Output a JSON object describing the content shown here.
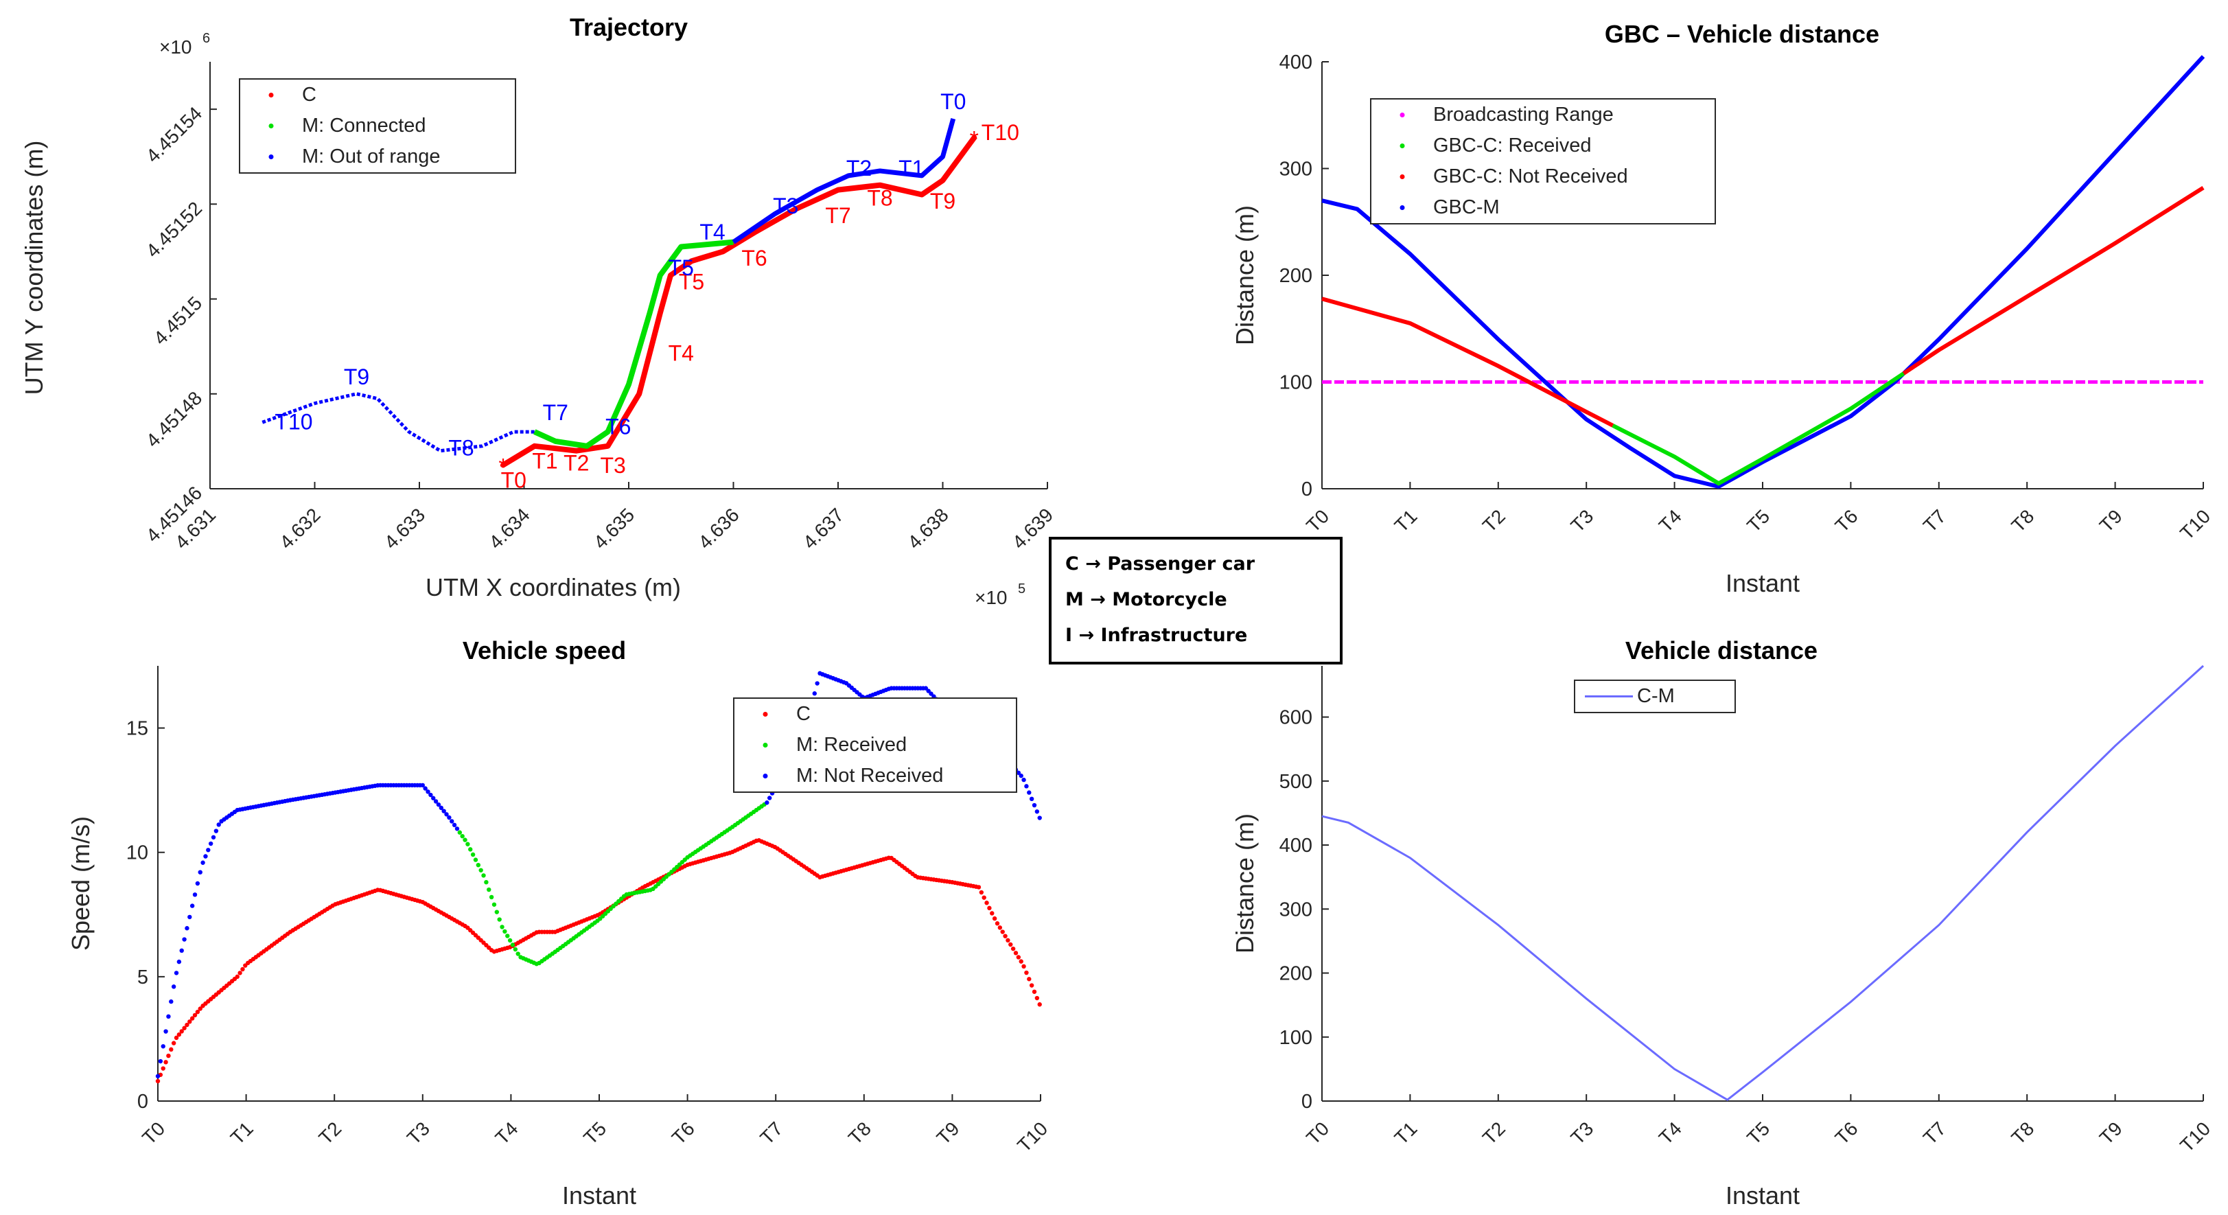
{
  "abbreviations": [
    "C → Passenger car",
    "M → Motorcycle",
    "I → Infrastructure"
  ],
  "chart_data": [
    {
      "id": "trajectory",
      "type": "scatter",
      "title": "Trajectory",
      "xlabel": "UTM X coordinates (m)",
      "ylabel": "UTM Y coordinates (m)",
      "x_exponent_label": "×10",
      "x_exponent": "5",
      "y_exponent_label": "×10",
      "y_exponent": "6",
      "xlim": [
        4.631,
        4.639
      ],
      "ylim": [
        4.45146,
        4.45155
      ],
      "xticks": [
        "4.631",
        "4.632",
        "4.633",
        "4.634",
        "4.635",
        "4.636",
        "4.637",
        "4.638",
        "4.639"
      ],
      "yticks": [
        "4.45146",
        "4.45148",
        "4.4515",
        "4.45152",
        "4.45154"
      ],
      "legend_position": "top-left",
      "colors": {
        "C": "#ff0000",
        "M: Connected": "#00e000",
        "M: Out of range": "#0000ff"
      },
      "legend": [
        "C",
        "M: Connected",
        "M: Out of range"
      ],
      "car_path": {
        "x": [
          4.6338,
          4.6341,
          4.6345,
          4.6348,
          4.6351,
          4.6353,
          4.6354,
          4.6356,
          4.6359,
          4.6362,
          4.6366,
          4.637,
          4.6374,
          4.6378,
          4.638,
          4.6383
        ],
        "y": [
          4.451465,
          4.451469,
          4.451468,
          4.451469,
          4.45148,
          4.451497,
          4.451505,
          4.451508,
          4.45151,
          4.451514,
          4.451519,
          4.451523,
          4.451524,
          4.451522,
          4.451525,
          4.451534
        ]
      },
      "moto_path": {
        "x": [
          4.6315,
          4.632,
          4.6324,
          4.6326,
          4.6329,
          4.6332,
          4.6336,
          4.6339,
          4.6341,
          4.6343,
          4.6346,
          4.6348,
          4.635,
          4.6352,
          4.6353,
          4.6355,
          4.636,
          4.6364,
          4.6368,
          4.6371,
          4.6374,
          4.6378,
          4.638,
          4.6381
        ],
        "y": [
          4.451474,
          4.451478,
          4.45148,
          4.451479,
          4.451472,
          4.451468,
          4.451469,
          4.451472,
          4.451472,
          4.45147,
          4.451469,
          4.451472,
          4.451482,
          4.451497,
          4.451505,
          4.451511,
          4.451512,
          4.451518,
          4.451523,
          4.451526,
          4.451527,
          4.451526,
          4.45153,
          4.451538
        ]
      },
      "connected_x_range": [
        4.6341,
        4.636
      ],
      "car_labels": [
        {
          "text": "T0",
          "x": 4.6339,
          "y": 4.4514602
        },
        {
          "text": "T1",
          "x": 4.6342,
          "y": 4.4514643
        },
        {
          "text": "T2",
          "x": 4.6345,
          "y": 4.4514638
        },
        {
          "text": "T3",
          "x": 4.63485,
          "y": 4.4514633
        },
        {
          "text": "T4",
          "x": 4.6355,
          "y": 4.451487
        },
        {
          "text": "T5",
          "x": 4.6356,
          "y": 4.451502
        },
        {
          "text": "T6",
          "x": 4.6362,
          "y": 4.451507
        },
        {
          "text": "T7",
          "x": 4.637,
          "y": 4.451516
        },
        {
          "text": "T8",
          "x": 4.6374,
          "y": 4.4515197
        },
        {
          "text": "T9",
          "x": 4.638,
          "y": 4.451519
        },
        {
          "text": "T10",
          "x": 4.63855,
          "y": 4.4515335
        }
      ],
      "moto_labels": [
        {
          "text": "T10",
          "x": 4.6318,
          "y": 4.4514725
        },
        {
          "text": "T9",
          "x": 4.6324,
          "y": 4.451482
        },
        {
          "text": "T8",
          "x": 4.6334,
          "y": 4.451467
        },
        {
          "text": "T7",
          "x": 4.6343,
          "y": 4.4514745
        },
        {
          "text": "T6",
          "x": 4.6349,
          "y": 4.4514715
        },
        {
          "text": "T5",
          "x": 4.6355,
          "y": 4.451505
        },
        {
          "text": "T4",
          "x": 4.6358,
          "y": 4.4515125
        },
        {
          "text": "T3",
          "x": 4.6365,
          "y": 4.451518
        },
        {
          "text": "T2",
          "x": 4.6372,
          "y": 4.451526
        },
        {
          "text": "T1",
          "x": 4.6377,
          "y": 4.451526
        },
        {
          "text": "T0",
          "x": 4.6381,
          "y": 4.45154
        }
      ]
    },
    {
      "id": "gbc-distance",
      "type": "line",
      "title": "GBC – Vehicle distance",
      "xlabel": "Instant",
      "ylabel": "Distance (m)",
      "categories": [
        "T0",
        "T1",
        "T2",
        "T3",
        "T4",
        "T5",
        "T6",
        "T7",
        "T8",
        "T9",
        "T10"
      ],
      "xlim": [
        0,
        10
      ],
      "ylim": [
        0,
        400
      ],
      "yticks": [
        0,
        100,
        200,
        300,
        400
      ],
      "legend_position": "top-left",
      "legend": [
        "Broadcasting Range",
        "GBC-C: Received",
        "GBC-C: Not Received",
        "GBC-M"
      ],
      "colors": {
        "Broadcasting Range": "#ff00ff",
        "GBC-C: Received": "#00e000",
        "GBC-C: Not Received": "#ff0000",
        "GBC-M": "#0000ff"
      },
      "series": [
        {
          "name": "Broadcasting Range",
          "x": [
            0,
            10
          ],
          "values": [
            100,
            100
          ]
        },
        {
          "name": "GBC-C",
          "x": [
            0,
            1,
            2,
            3,
            3.4,
            4,
            4.5,
            5,
            6,
            6.6,
            7,
            8,
            9,
            10
          ],
          "values": [
            178,
            155,
            115,
            72,
            55,
            30,
            5,
            28,
            75,
            108,
            130,
            180,
            230,
            282
          ]
        },
        {
          "name": "GBC-M",
          "x": [
            0,
            0.4,
            1,
            2,
            3,
            3.5,
            4,
            4.5,
            5,
            6,
            6.5,
            7,
            8,
            9,
            10
          ],
          "values": [
            270,
            262,
            220,
            140,
            65,
            38,
            12,
            2,
            25,
            68,
            100,
            140,
            225,
            315,
            405
          ]
        }
      ],
      "received_x_range": [
        3.3,
        6.6
      ]
    },
    {
      "id": "vehicle-speed",
      "type": "scatter",
      "title": "Vehicle speed",
      "xlabel": "Instant",
      "ylabel": "Speed (m/s)",
      "categories": [
        "T0",
        "T1",
        "T2",
        "T3",
        "T4",
        "T5",
        "T6",
        "T7",
        "T8",
        "T9",
        "T10"
      ],
      "xlim": [
        0,
        10
      ],
      "ylim": [
        0,
        17.5
      ],
      "yticks": [
        0,
        5,
        10,
        15
      ],
      "legend_position": "top-right",
      "legend": [
        "C",
        "M: Received",
        "M: Not Received"
      ],
      "colors": {
        "C": "#ff0000",
        "M: Received": "#00e000",
        "M: Not Received": "#0000ff"
      },
      "series": [
        {
          "name": "C",
          "x": [
            0,
            0.2,
            0.5,
            0.9,
            1.0,
            1.5,
            2.0,
            2.5,
            3.0,
            3.5,
            3.8,
            4.0,
            4.3,
            4.5,
            5.0,
            5.5,
            6.0,
            6.5,
            6.8,
            7.0,
            7.5,
            8.0,
            8.3,
            8.6,
            9.0,
            9.3,
            9.5,
            9.8,
            10.0
          ],
          "values": [
            0.8,
            2.5,
            3.8,
            5.0,
            5.5,
            6.8,
            7.9,
            8.5,
            8.0,
            7.0,
            6.0,
            6.2,
            6.8,
            6.8,
            7.5,
            8.6,
            9.5,
            10.0,
            10.5,
            10.2,
            9.0,
            9.5,
            9.8,
            9.0,
            8.8,
            8.6,
            7.2,
            5.5,
            3.8
          ]
        },
        {
          "name": "M",
          "x": [
            0,
            0.2,
            0.5,
            0.7,
            0.9,
            1.2,
            1.5,
            2.0,
            2.5,
            3.0,
            3.3,
            3.5,
            3.7,
            3.9,
            4.1,
            4.3,
            4.5,
            5.0,
            5.3,
            5.6,
            6.0,
            6.5,
            6.9,
            7.3,
            7.5,
            7.8,
            8.0,
            8.3,
            8.7,
            9.0,
            9.3,
            9.6,
            9.8,
            10.0
          ],
          "values": [
            1.0,
            5.0,
            9.5,
            11.2,
            11.7,
            11.9,
            12.1,
            12.4,
            12.7,
            12.7,
            11.4,
            10.4,
            9.0,
            7.0,
            5.8,
            5.5,
            6.0,
            7.3,
            8.3,
            8.5,
            9.8,
            11.0,
            12.0,
            14.5,
            17.2,
            16.8,
            16.2,
            16.6,
            16.6,
            15.5,
            14.8,
            13.8,
            13.0,
            11.3
          ]
        }
      ],
      "received_x_range": [
        3.4,
        6.9
      ]
    },
    {
      "id": "vehicle-distance",
      "type": "line",
      "title": "Vehicle distance",
      "xlabel": "Instant",
      "ylabel": "Distance (m)",
      "categories": [
        "T0",
        "T1",
        "T2",
        "T3",
        "T4",
        "T5",
        "T6",
        "T7",
        "T8",
        "T9",
        "T10"
      ],
      "xlim": [
        0,
        10
      ],
      "ylim": [
        0,
        680
      ],
      "yticks": [
        0,
        100,
        200,
        300,
        400,
        500,
        600
      ],
      "legend_position": "top-left",
      "legend": [
        "C-M"
      ],
      "colors": {
        "C-M": "#6b6bff"
      },
      "series": [
        {
          "name": "C-M",
          "x": [
            0,
            0.3,
            1,
            2,
            3,
            4,
            4.6,
            5,
            6,
            7,
            8,
            9,
            10
          ],
          "values": [
            445,
            435,
            380,
            275,
            160,
            50,
            2,
            45,
            155,
            275,
            420,
            555,
            680
          ]
        }
      ]
    }
  ]
}
